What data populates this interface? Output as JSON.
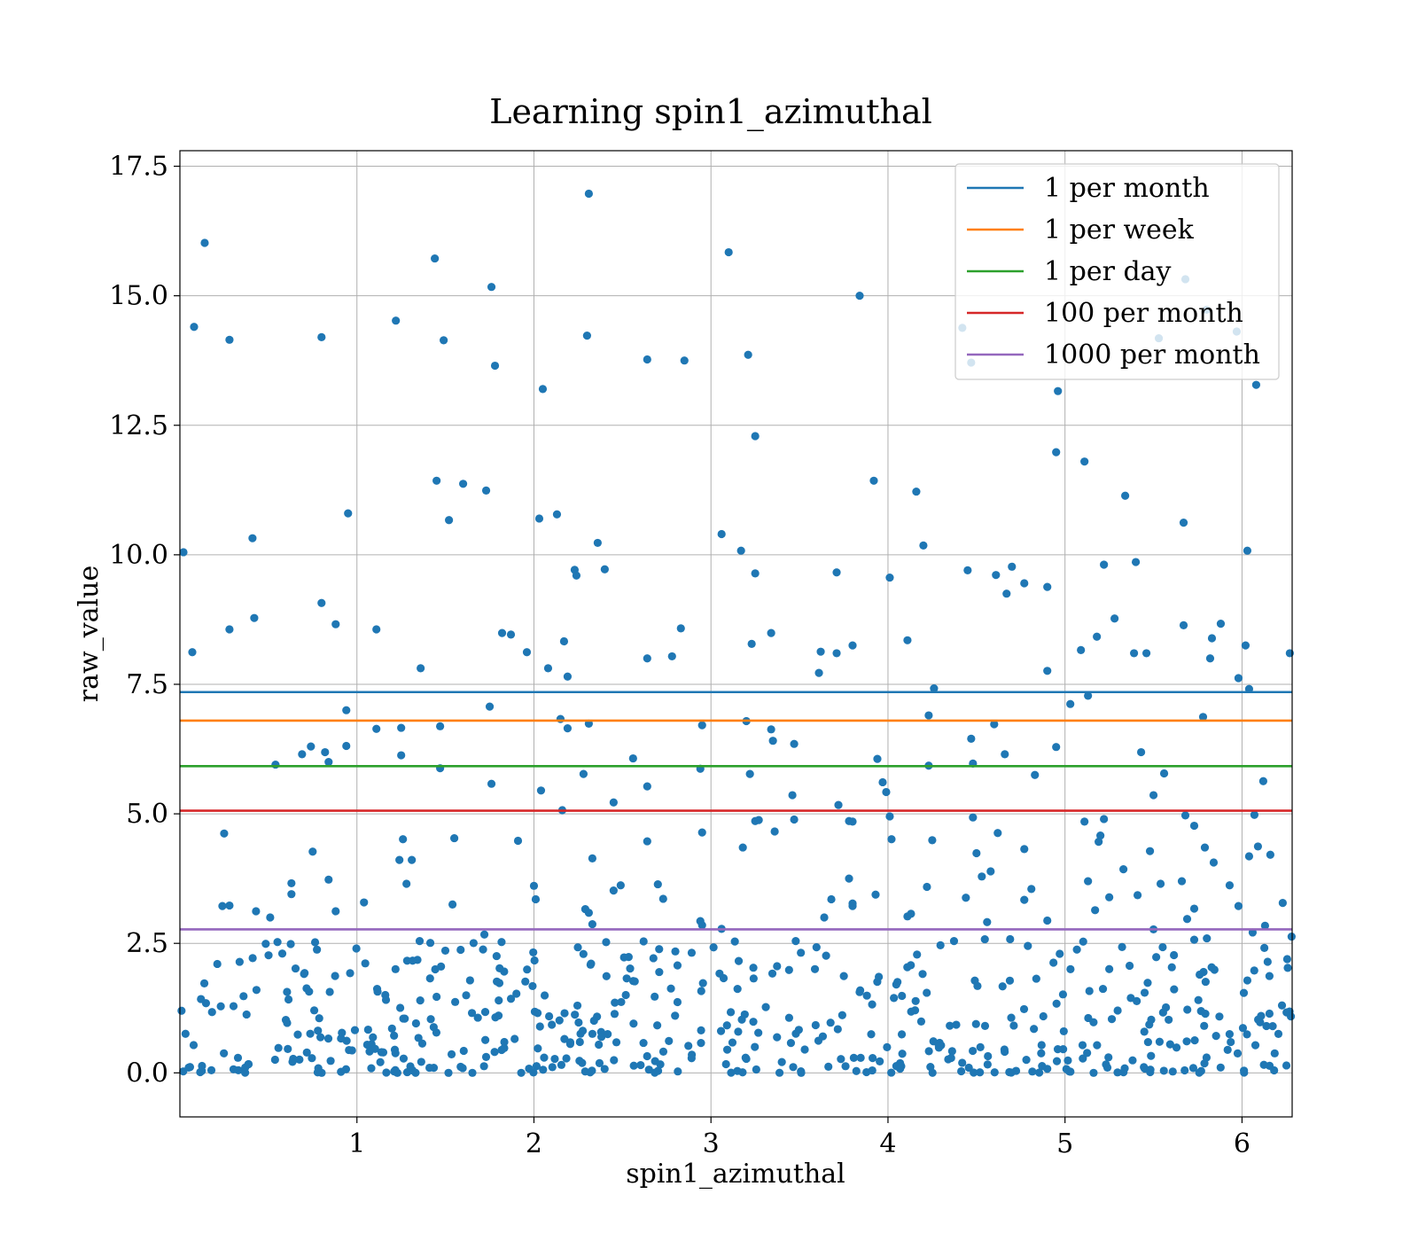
{
  "chart_data": {
    "type": "scatter",
    "title": "Learning spin1_azimuthal",
    "xlabel": "spin1_azimuthal",
    "ylabel": "raw_value",
    "xlim": [
      0.0,
      6.2832
    ],
    "ylim": [
      -0.85,
      17.8
    ],
    "xticks": [
      1,
      2,
      3,
      4,
      5,
      6
    ],
    "xtick_labels": [
      "1",
      "2",
      "3",
      "4",
      "5",
      "6"
    ],
    "yticks": [
      0.0,
      2.5,
      5.0,
      7.5,
      10.0,
      12.5,
      15.0,
      17.5
    ],
    "ytick_labels": [
      "0.0",
      "2.5",
      "5.0",
      "7.5",
      "10.0",
      "12.5",
      "15.0",
      "17.5"
    ],
    "grid": true,
    "legend_position": "top-right",
    "point_color": "#1f77b4",
    "hlines": [
      {
        "name": "1 per month",
        "y": 7.35,
        "color": "#1f77b4"
      },
      {
        "name": "1 per week",
        "y": 6.8,
        "color": "#ff7f0e"
      },
      {
        "name": "1 per day",
        "y": 5.92,
        "color": "#2ca02c"
      },
      {
        "name": "100 per month",
        "y": 5.06,
        "color": "#d62728"
      },
      {
        "name": "1000 per month",
        "y": 2.77,
        "color": "#9467bd"
      }
    ],
    "points": [
      [
        0.02,
        10.05
      ],
      [
        0.07,
        8.12
      ],
      [
        0.08,
        14.4
      ],
      [
        0.14,
        16.02
      ],
      [
        0.28,
        14.15
      ],
      [
        0.28,
        8.56
      ],
      [
        0.41,
        10.32
      ],
      [
        0.42,
        8.78
      ],
      [
        0.8,
        14.2
      ],
      [
        0.8,
        9.07
      ],
      [
        0.88,
        8.66
      ],
      [
        0.95,
        10.8
      ],
      [
        1.11,
        8.56
      ],
      [
        1.22,
        14.52
      ],
      [
        1.44,
        15.72
      ],
      [
        1.45,
        11.43
      ],
      [
        1.49,
        14.14
      ],
      [
        1.52,
        10.67
      ],
      [
        1.6,
        11.37
      ],
      [
        1.73,
        11.24
      ],
      [
        1.76,
        15.17
      ],
      [
        1.78,
        13.65
      ],
      [
        1.82,
        8.49
      ],
      [
        1.87,
        8.46
      ],
      [
        2.03,
        10.7
      ],
      [
        2.05,
        13.2
      ],
      [
        2.13,
        10.78
      ],
      [
        2.17,
        8.33
      ],
      [
        2.23,
        9.71
      ],
      [
        2.24,
        9.6
      ],
      [
        2.3,
        14.23
      ],
      [
        2.31,
        16.97
      ],
      [
        2.36,
        10.23
      ],
      [
        2.4,
        9.72
      ],
      [
        2.64,
        13.77
      ],
      [
        2.85,
        13.75
      ],
      [
        2.83,
        8.58
      ],
      [
        3.1,
        15.84
      ],
      [
        3.06,
        10.4
      ],
      [
        3.17,
        10.08
      ],
      [
        3.21,
        13.86
      ],
      [
        3.25,
        12.29
      ],
      [
        3.25,
        9.64
      ],
      [
        3.23,
        8.28
      ],
      [
        3.34,
        8.49
      ],
      [
        3.71,
        9.66
      ],
      [
        3.84,
        15.0
      ],
      [
        3.92,
        11.43
      ],
      [
        4.01,
        9.56
      ],
      [
        4.16,
        11.22
      ],
      [
        4.2,
        10.18
      ],
      [
        4.11,
        8.35
      ],
      [
        4.42,
        14.38
      ],
      [
        4.45,
        9.7
      ],
      [
        4.47,
        13.71
      ],
      [
        4.61,
        9.61
      ],
      [
        4.67,
        9.25
      ],
      [
        4.7,
        9.77
      ],
      [
        4.77,
        9.45
      ],
      [
        4.9,
        9.38
      ],
      [
        4.96,
        13.16
      ],
      [
        4.95,
        11.98
      ],
      [
        5.11,
        11.8
      ],
      [
        5.18,
        8.42
      ],
      [
        5.22,
        9.81
      ],
      [
        5.28,
        8.77
      ],
      [
        5.34,
        11.14
      ],
      [
        5.4,
        9.86
      ],
      [
        5.39,
        8.1
      ],
      [
        5.46,
        8.1
      ],
      [
        5.53,
        14.18
      ],
      [
        5.67,
        10.62
      ],
      [
        5.68,
        15.32
      ],
      [
        5.8,
        14.73
      ],
      [
        5.83,
        8.39
      ],
      [
        5.88,
        8.67
      ],
      [
        5.97,
        14.31
      ],
      [
        6.03,
        10.08
      ],
      [
        6.08,
        13.28
      ],
      [
        6.02,
        8.25
      ],
      [
        6.27,
        8.1
      ],
      [
        5.67,
        8.64
      ],
      [
        5.82,
        8.0
      ],
      [
        3.8,
        8.25
      ],
      [
        2.64,
        8.0
      ],
      [
        2.78,
        8.04
      ],
      [
        1.96,
        8.12
      ],
      [
        3.62,
        8.13
      ],
      [
        3.71,
        8.1
      ],
      [
        0.54,
        5.95
      ],
      [
        0.69,
        6.15
      ],
      [
        0.74,
        6.3
      ],
      [
        0.82,
        6.19
      ],
      [
        0.84,
        6.0
      ],
      [
        0.94,
        6.31
      ],
      [
        0.94,
        7.0
      ],
      [
        1.11,
        6.64
      ],
      [
        1.25,
        6.66
      ],
      [
        1.25,
        6.13
      ],
      [
        1.36,
        7.81
      ],
      [
        1.47,
        6.69
      ],
      [
        1.47,
        5.88
      ],
      [
        1.75,
        7.07
      ],
      [
        1.76,
        5.58
      ],
      [
        2.04,
        5.45
      ],
      [
        2.08,
        7.81
      ],
      [
        2.15,
        6.83
      ],
      [
        2.19,
        7.65
      ],
      [
        2.19,
        6.65
      ],
      [
        2.31,
        6.74
      ],
      [
        2.28,
        5.77
      ],
      [
        2.16,
        5.07
      ],
      [
        2.45,
        5.22
      ],
      [
        2.56,
        6.07
      ],
      [
        2.64,
        5.53
      ],
      [
        2.95,
        6.71
      ],
      [
        2.94,
        5.87
      ],
      [
        3.2,
        6.79
      ],
      [
        3.22,
        5.77
      ],
      [
        3.34,
        6.63
      ],
      [
        3.35,
        6.41
      ],
      [
        3.47,
        6.35
      ],
      [
        3.46,
        5.36
      ],
      [
        3.61,
        7.72
      ],
      [
        3.72,
        5.17
      ],
      [
        3.94,
        6.06
      ],
      [
        3.97,
        5.61
      ],
      [
        3.99,
        5.42
      ],
      [
        4.01,
        4.95
      ],
      [
        4.23,
        6.9
      ],
      [
        4.26,
        7.42
      ],
      [
        4.23,
        5.93
      ],
      [
        4.47,
        6.45
      ],
      [
        4.48,
        5.97
      ],
      [
        4.6,
        6.73
      ],
      [
        4.66,
        6.15
      ],
      [
        4.83,
        5.75
      ],
      [
        4.9,
        7.76
      ],
      [
        4.95,
        6.29
      ],
      [
        5.09,
        8.16
      ],
      [
        5.03,
        7.12
      ],
      [
        5.13,
        7.28
      ],
      [
        5.43,
        6.19
      ],
      [
        5.5,
        5.36
      ],
      [
        5.56,
        5.78
      ],
      [
        5.78,
        6.87
      ],
      [
        5.98,
        7.62
      ],
      [
        6.04,
        7.41
      ],
      [
        6.12,
        5.63
      ],
      [
        6.07,
        4.98
      ],
      [
        0.25,
        4.62
      ],
      [
        0.75,
        4.27
      ],
      [
        1.26,
        4.51
      ],
      [
        1.31,
        4.11
      ],
      [
        1.24,
        4.11
      ],
      [
        1.55,
        4.53
      ],
      [
        1.91,
        4.48
      ],
      [
        2.33,
        4.14
      ],
      [
        2.64,
        4.47
      ],
      [
        2.95,
        4.64
      ],
      [
        3.18,
        4.35
      ],
      [
        3.27,
        4.88
      ],
      [
        3.25,
        4.86
      ],
      [
        3.36,
        4.66
      ],
      [
        3.47,
        4.89
      ],
      [
        3.78,
        4.86
      ],
      [
        3.8,
        4.85
      ],
      [
        4.02,
        4.51
      ],
      [
        4.25,
        4.49
      ],
      [
        4.48,
        4.93
      ],
      [
        4.5,
        4.24
      ],
      [
        4.62,
        4.63
      ],
      [
        4.77,
        4.32
      ],
      [
        5.11,
        4.85
      ],
      [
        5.2,
        4.58
      ],
      [
        5.19,
        4.46
      ],
      [
        5.22,
        4.9
      ],
      [
        5.33,
        3.93
      ],
      [
        5.48,
        4.28
      ],
      [
        5.68,
        4.97
      ],
      [
        5.73,
        4.77
      ],
      [
        5.79,
        4.35
      ],
      [
        5.84,
        4.06
      ],
      [
        6.04,
        4.18
      ],
      [
        6.09,
        4.37
      ],
      [
        6.16,
        4.21
      ],
      [
        0.24,
        3.22
      ],
      [
        0.28,
        3.23
      ],
      [
        0.43,
        3.12
      ],
      [
        0.51,
        3.0
      ],
      [
        0.63,
        3.66
      ],
      [
        0.63,
        3.45
      ],
      [
        0.84,
        3.73
      ],
      [
        0.88,
        3.12
      ],
      [
        1.04,
        3.29
      ],
      [
        1.28,
        3.65
      ],
      [
        1.54,
        3.25
      ],
      [
        1.72,
        2.67
      ],
      [
        2.0,
        3.61
      ],
      [
        2.01,
        3.35
      ],
      [
        2.29,
        3.16
      ],
      [
        2.31,
        3.09
      ],
      [
        2.33,
        2.87
      ],
      [
        2.45,
        3.52
      ],
      [
        2.49,
        3.62
      ],
      [
        2.7,
        3.64
      ],
      [
        2.73,
        3.36
      ],
      [
        2.94,
        2.93
      ],
      [
        2.95,
        2.85
      ],
      [
        3.06,
        2.78
      ],
      [
        3.64,
        3.0
      ],
      [
        3.68,
        3.35
      ],
      [
        3.78,
        3.75
      ],
      [
        3.8,
        3.27
      ],
      [
        3.8,
        3.22
      ],
      [
        3.93,
        3.44
      ],
      [
        4.11,
        3.02
      ],
      [
        4.13,
        3.07
      ],
      [
        4.22,
        3.59
      ],
      [
        4.44,
        3.38
      ],
      [
        4.53,
        3.79
      ],
      [
        4.58,
        3.89
      ],
      [
        4.56,
        2.91
      ],
      [
        4.69,
        2.58
      ],
      [
        4.77,
        3.34
      ],
      [
        4.81,
        3.55
      ],
      [
        4.9,
        2.94
      ],
      [
        5.13,
        3.7
      ],
      [
        5.17,
        3.14
      ],
      [
        5.25,
        3.39
      ],
      [
        5.41,
        3.43
      ],
      [
        5.5,
        2.77
      ],
      [
        5.54,
        3.65
      ],
      [
        5.66,
        3.7
      ],
      [
        5.69,
        2.97
      ],
      [
        5.73,
        3.17
      ],
      [
        5.93,
        3.62
      ],
      [
        5.98,
        3.22
      ],
      [
        6.06,
        2.71
      ],
      [
        6.13,
        2.84
      ],
      [
        6.23,
        3.28
      ],
      [
        6.28,
        2.63
      ]
    ],
    "dense_cluster": {
      "description_x_range": [
        0.0,
        6.2832
      ],
      "y_range": [
        0.0,
        2.6
      ],
      "count": 520
    }
  }
}
